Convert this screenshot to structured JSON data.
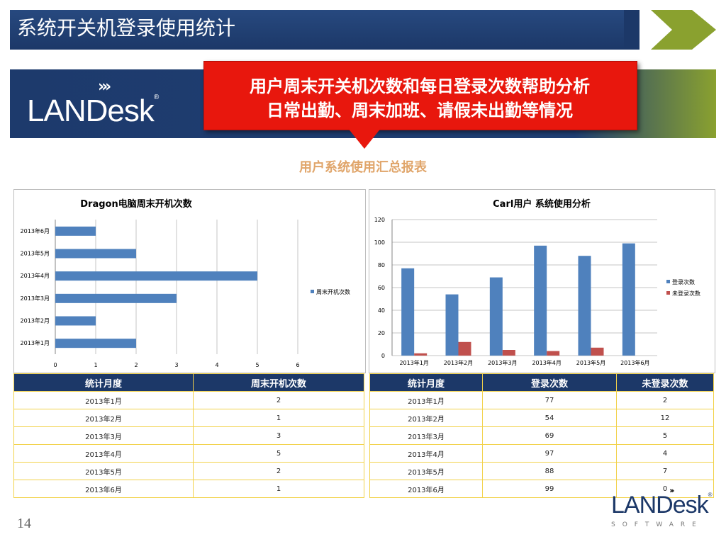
{
  "header": {
    "title": "系统开关机登录使用统计"
  },
  "banner": {
    "logo_text": "LANDesk",
    "logo_reg": "®",
    "chevrons": "›››"
  },
  "callout": {
    "line1": "用户周末开关机次数和每日登录次数帮助分析",
    "line2": "日常出勤、周末加班、请假未出勤等情况"
  },
  "subtitle": "用户系统使用汇总报表",
  "chart_data": [
    {
      "type": "bar",
      "orientation": "horizontal",
      "title": "Dragon电脑周末开机次数",
      "categories": [
        "2013年1月",
        "2013年2月",
        "2013年3月",
        "2013年4月",
        "2013年5月",
        "2013年6月"
      ],
      "series": [
        {
          "name": "周末开机次数",
          "values": [
            2,
            1,
            3,
            5,
            2,
            1
          ],
          "color": "#4f81bd"
        }
      ],
      "xlim": [
        0,
        6
      ],
      "xticks": [
        0,
        1,
        2,
        3,
        4,
        5,
        6
      ],
      "grid": true,
      "legend": "right"
    },
    {
      "type": "bar",
      "title": "Carl用户 系统使用分析",
      "categories": [
        "2013年1月",
        "2013年2月",
        "2013年3月",
        "2013年4月",
        "2013年5月",
        "2013年6月"
      ],
      "series": [
        {
          "name": "登录次数",
          "values": [
            77,
            54,
            69,
            97,
            88,
            99
          ],
          "color": "#4f81bd"
        },
        {
          "name": "未登录次数",
          "values": [
            2,
            12,
            5,
            4,
            7,
            0
          ],
          "color": "#c0504d"
        }
      ],
      "ylim": [
        0,
        120
      ],
      "yticks": [
        0,
        20,
        40,
        60,
        80,
        100,
        120
      ],
      "grid": true,
      "legend": "right"
    }
  ],
  "left_table": {
    "headers": [
      "统计月度",
      "周末开机次数"
    ],
    "rows": [
      [
        "2013年1月",
        "2"
      ],
      [
        "2013年2月",
        "1"
      ],
      [
        "2013年3月",
        "3"
      ],
      [
        "2013年4月",
        "5"
      ],
      [
        "2013年5月",
        "2"
      ],
      [
        "2013年6月",
        "1"
      ]
    ]
  },
  "right_table": {
    "headers": [
      "统计月度",
      "登录次数",
      "未登录次数"
    ],
    "rows": [
      [
        "2013年1月",
        "77",
        "2"
      ],
      [
        "2013年2月",
        "54",
        "12"
      ],
      [
        "2013年3月",
        "69",
        "5"
      ],
      [
        "2013年4月",
        "97",
        "4"
      ],
      [
        "2013年5月",
        "88",
        "7"
      ],
      [
        "2013年6月",
        "99",
        "0"
      ]
    ]
  },
  "footer": {
    "page_number": "14",
    "logo_text": "LANDesk",
    "logo_reg": "®",
    "software": "SOFTWARE",
    "chevrons": "›››"
  },
  "colors": {
    "navy": "#1c3868",
    "callout_red": "#e8170d",
    "accent_green": "#8aa12f",
    "table_border": "#f2d24a"
  }
}
